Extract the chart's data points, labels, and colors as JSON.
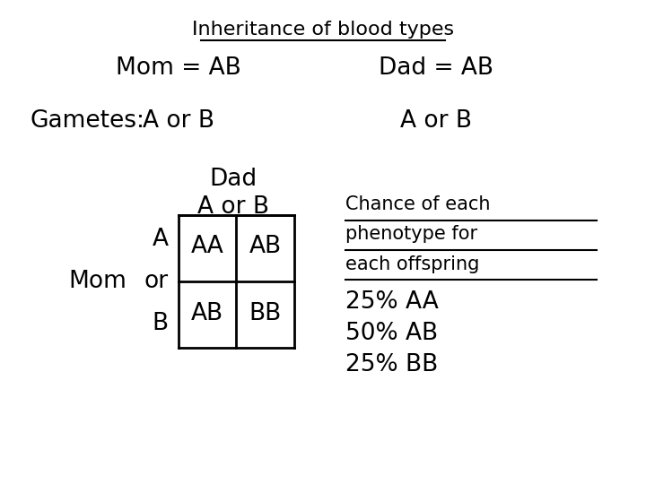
{
  "title": "Inheritance of blood types",
  "mom_label": "Mom = AB",
  "dad_label": "Dad = AB",
  "gametes_label": "Gametes:",
  "mom_gametes": "A or B",
  "dad_gametes": "A or B",
  "punnett_dad_header": "Dad",
  "punnett_dad_sub": "A or B",
  "punnett_row_labels": [
    "A",
    "or",
    "B"
  ],
  "punnett_mom_label": "Mom",
  "punnett_cells": [
    [
      "AA",
      "AB"
    ],
    [
      "AB",
      "BB"
    ]
  ],
  "chance_header_lines": [
    "Chance of each",
    "phenotype for",
    "each offspring"
  ],
  "chance_items": [
    "25% AA",
    "50% AB",
    "25% BB"
  ],
  "bg_color": "#ffffff",
  "text_color": "#000000",
  "title_fontsize": 16,
  "body_fontsize": 19,
  "chance_fontsize": 15,
  "font_family": "DejaVu Sans"
}
